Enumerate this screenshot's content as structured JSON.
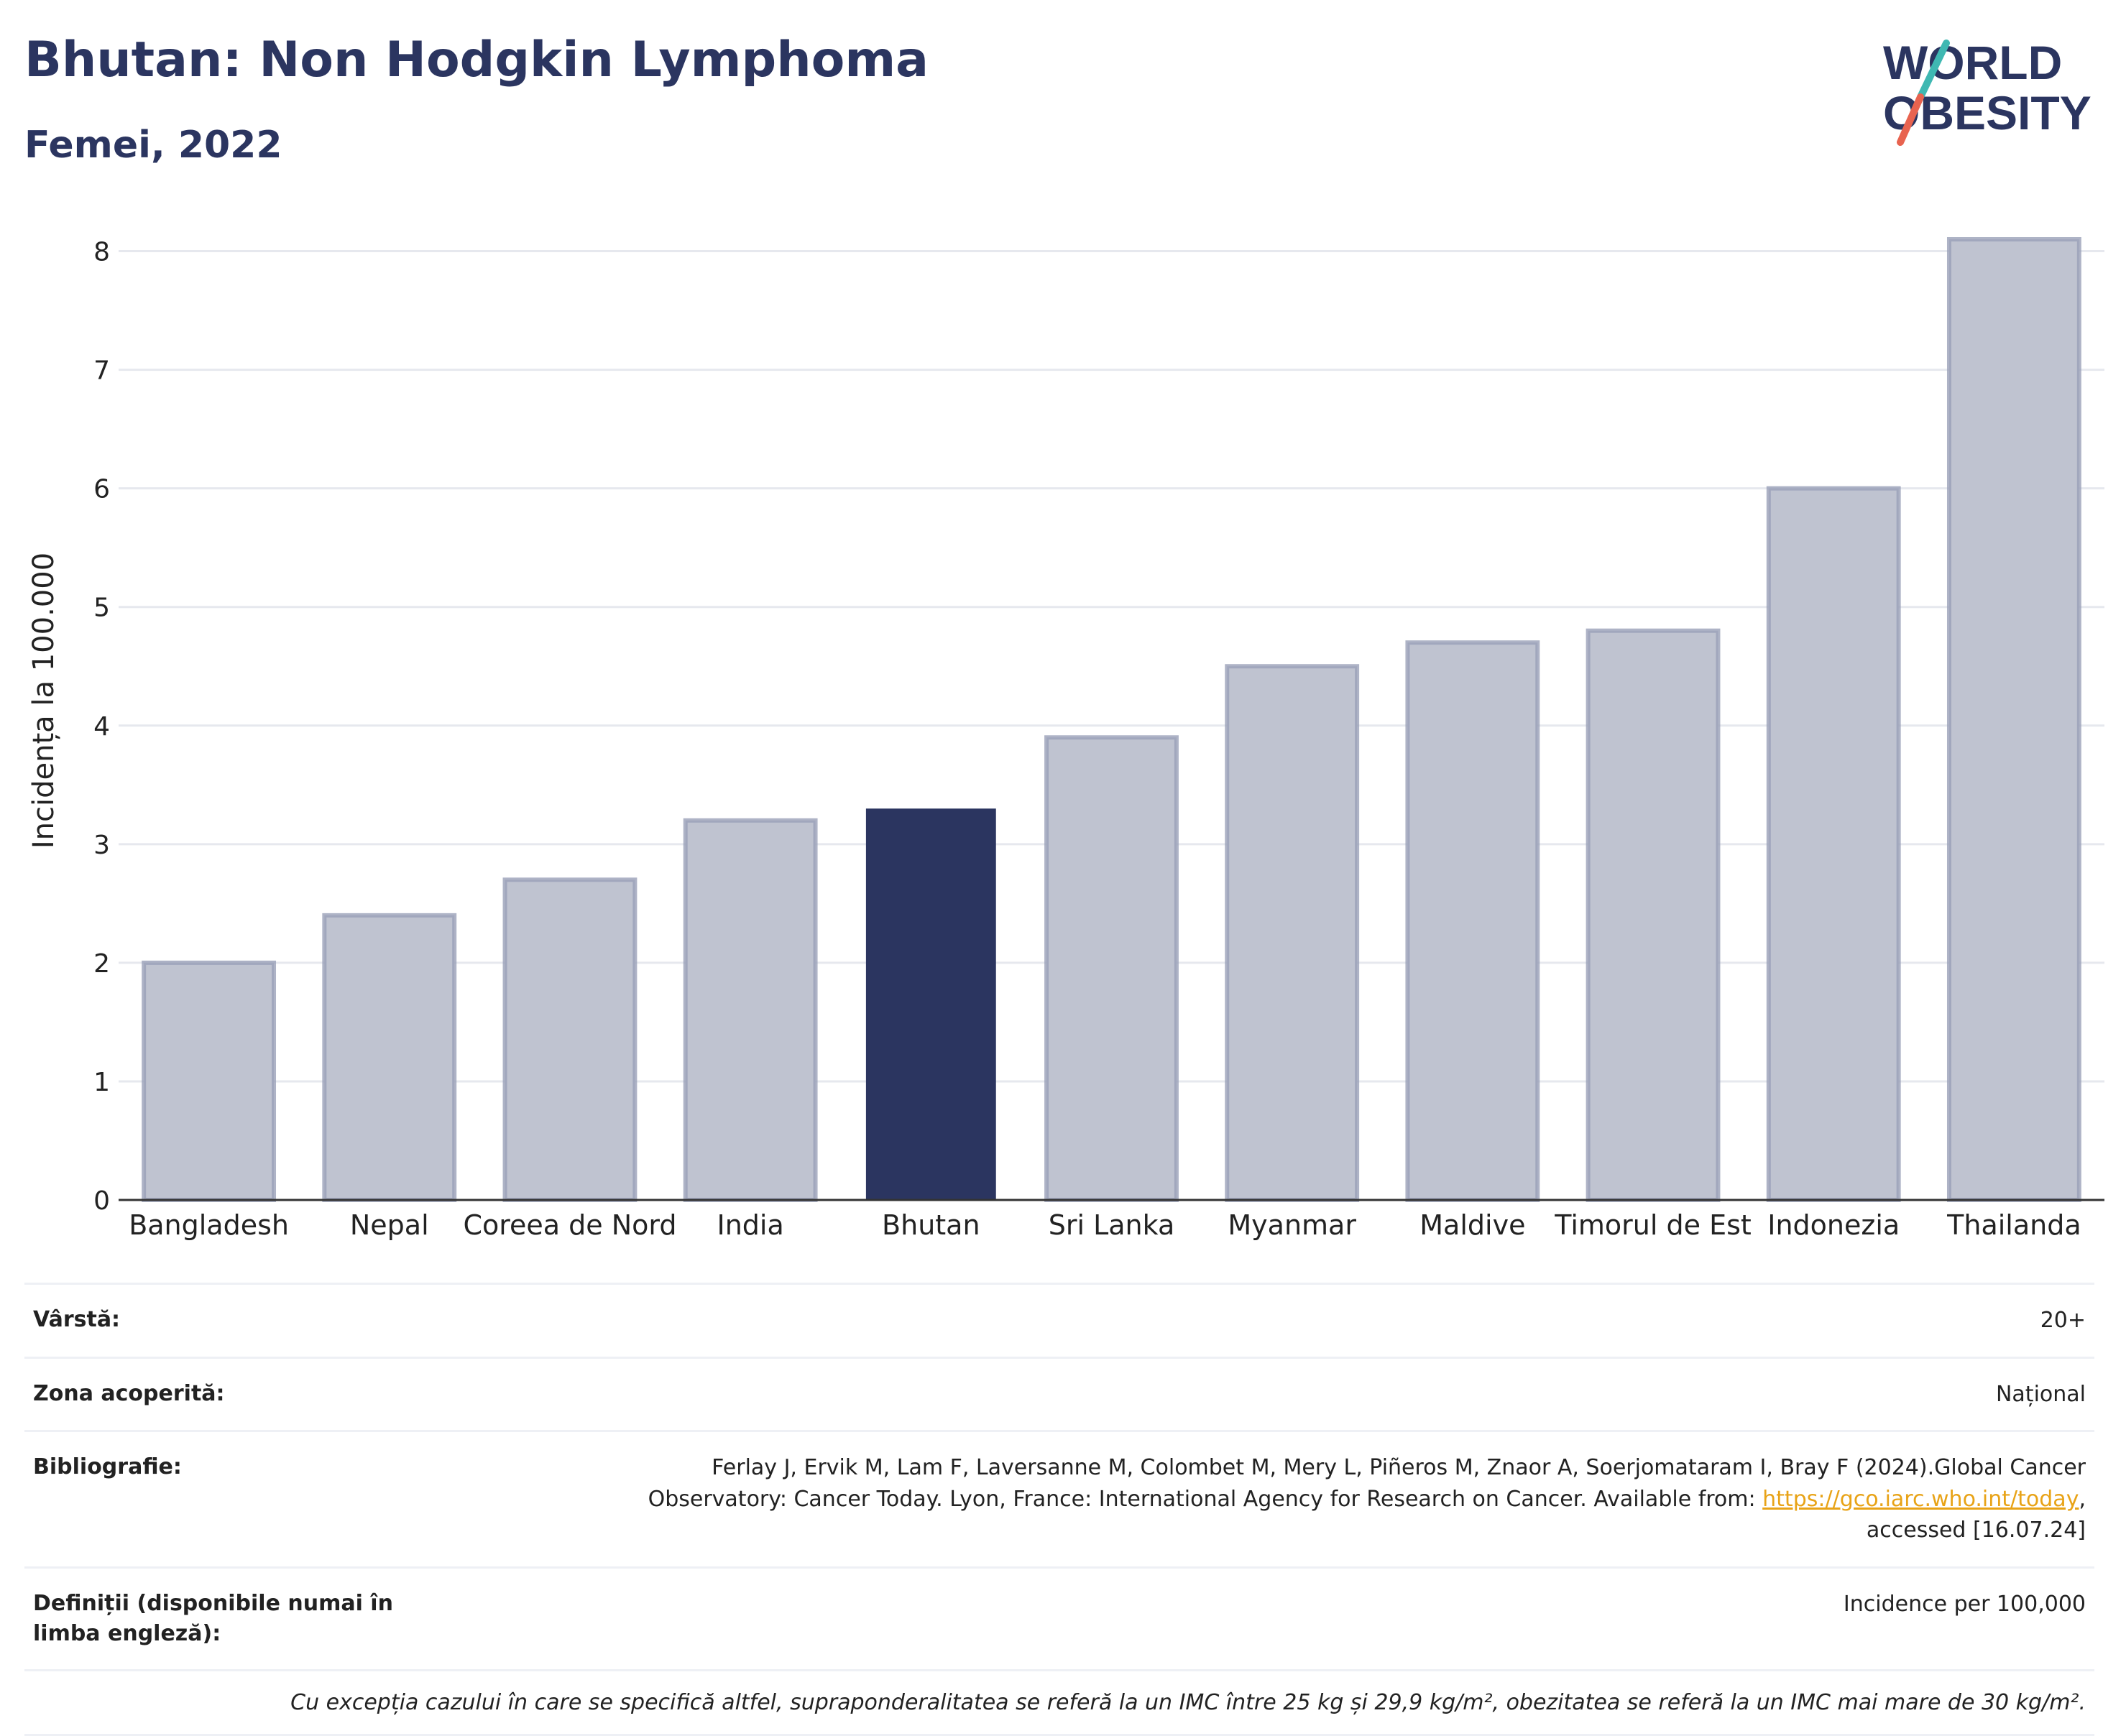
{
  "header": {
    "title": "Bhutan: Non Hodgkin Lymphoma",
    "subtitle": "Femei, 2022"
  },
  "logo": {
    "line1": "WORLD",
    "line2": "OBESITY",
    "icon": "world-obesity-logo"
  },
  "colors": {
    "highlight": "#2b3560",
    "bar": "#bfc3d0",
    "bar_stroke": "#9aa0b8",
    "grid": "#e6e8ee",
    "link": "#e8a317"
  },
  "chart_data": {
    "type": "bar",
    "categories": [
      "Bangladesh",
      "Nepal",
      "Coreea de Nord",
      "India",
      "Bhutan",
      "Sri Lanka",
      "Myanmar",
      "Maldive",
      "Timorul de Est",
      "Indonezia",
      "Thailanda"
    ],
    "values": [
      2.0,
      2.4,
      2.7,
      3.2,
      3.3,
      3.9,
      4.5,
      4.7,
      4.8,
      6.0,
      8.1
    ],
    "highlight": "Bhutan",
    "ylabel": "Incidența la 100.000",
    "ylim": [
      0,
      8.3
    ],
    "yticks": [
      0,
      1,
      2,
      3,
      4,
      5,
      6,
      7,
      8
    ],
    "grid": true
  },
  "meta": {
    "age_label": "Vârstă:",
    "age_value": "20+",
    "zone_label": "Zona acoperită:",
    "zone_value": "Național",
    "bib_label": "Bibliografie:",
    "bib_text_1": "Ferlay J, Ervik M, Lam F, Laversanne M, Colombet M, Mery L, Piñeros M, Znaor A, Soerjomataram I, Bray F (2024).Global Cancer",
    "bib_text_2": "Observatory: Cancer Today. Lyon, France: International Agency for Research on Cancer. Available from: ",
    "bib_link": "https://gco.iarc.who.int/today",
    "bib_text_3": ",",
    "bib_text_4": "accessed [16.07.24]",
    "def_label": "Definiții (disponibile numai în limba engleză):",
    "def_value": "Incidence per 100,000",
    "note": "Cu excepția cazului în care se specifică altfel, supraponderalitatea se referă la un IMC între 25 kg și 29,9 kg/m², obezitatea se referă la un IMC mai mare de 30 kg/m²."
  }
}
